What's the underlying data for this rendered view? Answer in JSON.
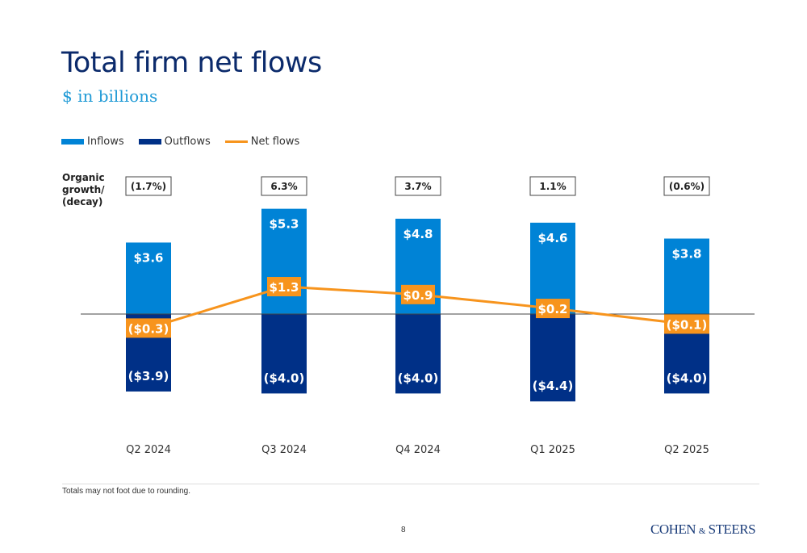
{
  "header": {
    "title": "Total firm net flows",
    "subtitle": "$ in billions"
  },
  "legend": [
    {
      "label": "Inflows",
      "color": "#0083d6",
      "kind": "bar"
    },
    {
      "label": "Outflows",
      "color": "#003087",
      "kind": "bar"
    },
    {
      "label": "Net flows",
      "color": "#f7941d",
      "kind": "line"
    }
  ],
  "organic_growth_label": [
    "Organic",
    "growth/",
    "(decay)"
  ],
  "chart_data": {
    "type": "bar",
    "title": "Total firm net flows",
    "subtitle": "$ in billions",
    "categories": [
      "Q2 2024",
      "Q3 2024",
      "Q4 2024",
      "Q1 2025",
      "Q2 2025"
    ],
    "series": [
      {
        "name": "Inflows",
        "type": "bar",
        "color": "#0083d6",
        "values": [
          3.6,
          5.3,
          4.8,
          4.6,
          3.8
        ],
        "labels": [
          "$3.6",
          "$5.3",
          "$4.8",
          "$4.6",
          "$3.8"
        ]
      },
      {
        "name": "Outflows",
        "type": "bar",
        "color": "#003087",
        "values": [
          -3.9,
          -4.0,
          -4.0,
          -4.4,
          -4.0
        ],
        "labels": [
          "($3.9)",
          "($4.0)",
          "($4.0)",
          "($4.4)",
          "($4.0)"
        ]
      },
      {
        "name": "Net flows",
        "type": "line",
        "color": "#f7941d",
        "values": [
          -0.3,
          1.3,
          0.9,
          0.2,
          -0.1
        ],
        "labels": [
          "($0.3)",
          "$1.3",
          "$0.9",
          "$0.2",
          "($0.1)"
        ]
      }
    ],
    "organic_growth": [
      "(1.7%)",
      "6.3%",
      "3.7%",
      "1.1%",
      "(0.6%)"
    ],
    "xlabel": "",
    "ylabel": "",
    "ylim": [
      -4.6,
      5.6
    ],
    "grid": false,
    "legend_position": "top-left"
  },
  "footer": {
    "note": "Totals may not foot due to rounding.",
    "page_number": "8",
    "logo_main1": "COHEN",
    "logo_amp": "&",
    "logo_main2": "STEERS"
  }
}
